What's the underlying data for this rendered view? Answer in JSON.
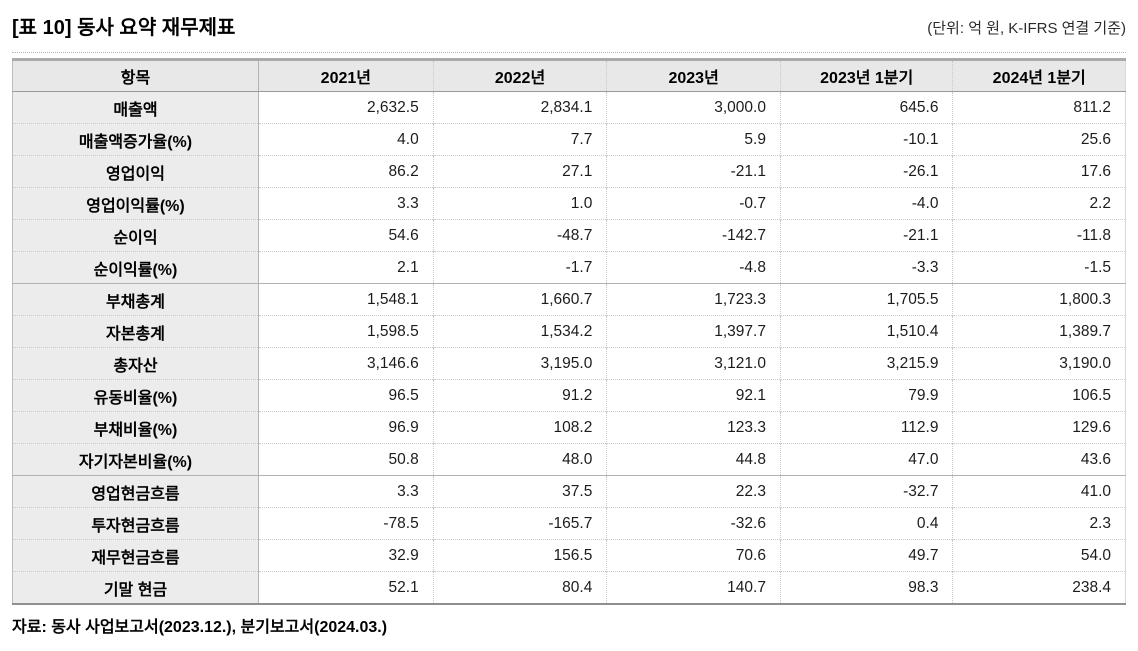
{
  "title": "[표 10] 동사 요약 재무제표",
  "unit_note": "(단위: 억 원, K-IFRS 연결 기준)",
  "source": "자료: 동사  사업보고서(2023.12.),  분기보고서(2024.03.)",
  "colors": {
    "header_bg": "#e8e8e8",
    "label_bg": "#ececec",
    "border_solid": "#b2b2b2",
    "border_dotted": "#c9c9c9",
    "table_top_border": "#a9a9a9",
    "table_bottom_border": "#8f8f8f",
    "text": "#000000"
  },
  "table": {
    "columns": [
      "항목",
      "2021년",
      "2022년",
      "2023년",
      "2023년 1분기",
      "2024년 1분기"
    ],
    "groups": [
      {
        "rows": [
          {
            "label": "매출액",
            "values": [
              "2,632.5",
              "2,834.1",
              "3,000.0",
              "645.6",
              "811.2"
            ]
          },
          {
            "label": "매출액증가율(%)",
            "values": [
              "4.0",
              "7.7",
              "5.9",
              "-10.1",
              "25.6"
            ]
          },
          {
            "label": "영업이익",
            "values": [
              "86.2",
              "27.1",
              "-21.1",
              "-26.1",
              "17.6"
            ]
          },
          {
            "label": "영업이익률(%)",
            "values": [
              "3.3",
              "1.0",
              "-0.7",
              "-4.0",
              "2.2"
            ]
          },
          {
            "label": "순이익",
            "values": [
              "54.6",
              "-48.7",
              "-142.7",
              "-21.1",
              "-11.8"
            ]
          },
          {
            "label": "순이익률(%)",
            "values": [
              "2.1",
              "-1.7",
              "-4.8",
              "-3.3",
              "-1.5"
            ]
          }
        ]
      },
      {
        "rows": [
          {
            "label": "부채총계",
            "values": [
              "1,548.1",
              "1,660.7",
              "1,723.3",
              "1,705.5",
              "1,800.3"
            ]
          },
          {
            "label": "자본총계",
            "values": [
              "1,598.5",
              "1,534.2",
              "1,397.7",
              "1,510.4",
              "1,389.7"
            ]
          },
          {
            "label": "총자산",
            "values": [
              "3,146.6",
              "3,195.0",
              "3,121.0",
              "3,215.9",
              "3,190.0"
            ]
          },
          {
            "label": "유동비율(%)",
            "values": [
              "96.5",
              "91.2",
              "92.1",
              "79.9",
              "106.5"
            ]
          },
          {
            "label": "부채비율(%)",
            "values": [
              "96.9",
              "108.2",
              "123.3",
              "112.9",
              "129.6"
            ]
          },
          {
            "label": "자기자본비율(%)",
            "values": [
              "50.8",
              "48.0",
              "44.8",
              "47.0",
              "43.6"
            ]
          }
        ]
      },
      {
        "rows": [
          {
            "label": "영업현금흐름",
            "values": [
              "3.3",
              "37.5",
              "22.3",
              "-32.7",
              "41.0"
            ]
          },
          {
            "label": "투자현금흐름",
            "values": [
              "-78.5",
              "-165.7",
              "-32.6",
              "0.4",
              "2.3"
            ]
          },
          {
            "label": "재무현금흐름",
            "values": [
              "32.9",
              "156.5",
              "70.6",
              "49.7",
              "54.0"
            ]
          },
          {
            "label": "기말 현금",
            "values": [
              "52.1",
              "80.4",
              "140.7",
              "98.3",
              "238.4"
            ]
          }
        ]
      }
    ]
  }
}
